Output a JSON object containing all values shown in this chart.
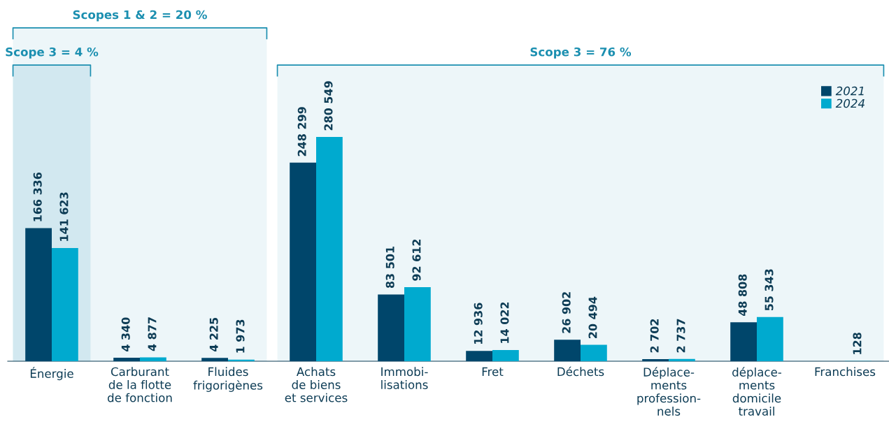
{
  "chart_data": {
    "type": "bar",
    "categories": [
      "Énergie",
      "Carburant\nde la flotte\nde fonction",
      "Fluides\nfrigorigènes",
      "Achats\nde biens\net services",
      "Immobi-\nlisations",
      "Fret",
      "Déchets",
      "Déplace-\nments\nprofession-\nnels",
      "déplace-\nments\ndomicile\ntravail",
      "Franchises"
    ],
    "series": [
      {
        "name": "2021",
        "color": "#00466b",
        "values": [
          166336,
          4340,
          4225,
          248299,
          83501,
          12936,
          26902,
          2702,
          48808,
          null
        ]
      },
      {
        "name": "2024",
        "color": "#00aacf",
        "values": [
          141623,
          4877,
          1973,
          280549,
          92612,
          14022,
          20494,
          2737,
          55343,
          128
        ]
      }
    ],
    "data_labels": true,
    "legend": "top right",
    "grid": false,
    "bands": [
      {
        "axis": "x",
        "from": "Énergie",
        "to": "Fluides\nfrigorigènes",
        "label": "Scopes 1 & 2 = 20 %",
        "color": "#edf6f9"
      },
      {
        "axis": "x",
        "from": "Énergie",
        "to": "Énergie",
        "label": "Scope 3 = 4 %",
        "color": "#d2e8f0"
      },
      {
        "axis": "x",
        "from": "Achats\nde biens\net services",
        "to": "Franchises",
        "label": "Scope 3 = 76 %",
        "color": "#edf6f9"
      }
    ]
  }
}
